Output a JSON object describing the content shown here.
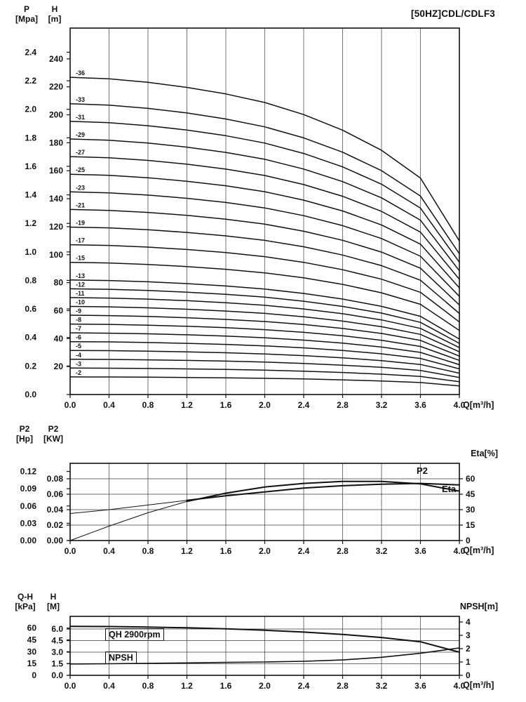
{
  "page": {
    "bg": "#ffffff",
    "fg": "#111111",
    "grid_color": "#3c3c3c"
  },
  "chart_data": [
    {
      "id": "head-capacity",
      "type": "line",
      "title": "[50HZ]CDL/CDLF3",
      "x_label": "Q[m³/h]",
      "xlim": [
        0,
        4
      ],
      "x_ticks": [
        "0.0",
        "0.4",
        "0.8",
        "1.2",
        "1.6",
        "2.0",
        "2.4",
        "2.8",
        "3.2",
        "3.6",
        "4.0"
      ],
      "left_axis_primary": {
        "label": "P",
        "unit": "[Mpa]",
        "m_per_unit": 101.97,
        "ticks": [
          "0.0",
          "0.2",
          "0.4",
          "0.6",
          "0.8",
          "1.0",
          "1.2",
          "1.4",
          "1.6",
          "1.8",
          "2.0",
          "2.2",
          "2.4"
        ]
      },
      "left_axis_secondary": {
        "label": "H",
        "unit": "[m]",
        "ticks": [
          "20",
          "40",
          "60",
          "80",
          "100",
          "120",
          "140",
          "160",
          "180",
          "200",
          "220",
          "240"
        ]
      },
      "master_ylim": [
        0,
        262
      ],
      "per_stage_curve": {
        "q": [
          0,
          0.4,
          0.8,
          1.2,
          1.6,
          2.0,
          2.4,
          2.8,
          3.2,
          3.6,
          4.0
        ],
        "head_m": [
          6.3,
          6.27,
          6.2,
          6.1,
          5.97,
          5.8,
          5.56,
          5.25,
          4.85,
          4.3,
          3.05
        ]
      },
      "stage_series": [
        {
          "label": "-36",
          "stages": 36
        },
        {
          "label": "-33",
          "stages": 33
        },
        {
          "label": "-31",
          "stages": 31
        },
        {
          "label": "-29",
          "stages": 29
        },
        {
          "label": "-27",
          "stages": 27
        },
        {
          "label": "-25",
          "stages": 25
        },
        {
          "label": "-23",
          "stages": 23
        },
        {
          "label": "-21",
          "stages": 21
        },
        {
          "label": "-19",
          "stages": 19
        },
        {
          "label": "-17",
          "stages": 17
        },
        {
          "label": "-15",
          "stages": 15
        },
        {
          "label": "-13",
          "stages": 13
        },
        {
          "label": "-12",
          "stages": 12
        },
        {
          "label": "-11",
          "stages": 11
        },
        {
          "label": "-10",
          "stages": 10
        },
        {
          "label": "-9",
          "stages": 9
        },
        {
          "label": "-8",
          "stages": 8
        },
        {
          "label": "-7",
          "stages": 7
        },
        {
          "label": "-6",
          "stages": 6
        },
        {
          "label": "-5",
          "stages": 5
        },
        {
          "label": "-4",
          "stages": 4
        },
        {
          "label": "-3",
          "stages": 3
        },
        {
          "label": "-2",
          "stages": 2
        }
      ]
    },
    {
      "id": "power-efficiency",
      "type": "line",
      "x_label": "Q[m³/h]",
      "xlim": [
        0,
        4
      ],
      "x_ticks": [
        "0.0",
        "0.4",
        "0.8",
        "1.2",
        "1.6",
        "2.0",
        "2.4",
        "2.8",
        "3.2",
        "3.6",
        "4.0"
      ],
      "left_axis_primary": {
        "label": "P2",
        "unit": "[Hp]",
        "kw_per_unit": 0.7457,
        "ticks": [
          "0.00",
          "0.03",
          "0.06",
          "0.09",
          "0.12"
        ]
      },
      "left_axis_secondary": {
        "label": "P2",
        "unit": "[KW]",
        "ticks": [
          "0.00",
          "0.02",
          "0.04",
          "0.06",
          "0.08"
        ]
      },
      "right_axis": {
        "label": "Eta[%]",
        "ticks": [
          "0",
          "15",
          "30",
          "45",
          "60"
        ]
      },
      "master_ylim": [
        0,
        0.1
      ],
      "right_ylim": [
        0,
        75
      ],
      "bold_from_q": 1.2,
      "series": [
        {
          "name": "P2",
          "axis": "left",
          "q": [
            0,
            0.4,
            0.8,
            1.2,
            1.6,
            2.0,
            2.4,
            2.8,
            3.2,
            3.6,
            4.0
          ],
          "values": [
            0.035,
            0.04,
            0.046,
            0.052,
            0.058,
            0.063,
            0.068,
            0.071,
            0.073,
            0.074,
            0.072
          ]
        },
        {
          "name": "Eta",
          "axis": "right",
          "q": [
            0,
            0.4,
            0.8,
            1.2,
            1.6,
            2.0,
            2.4,
            2.8,
            3.2,
            3.6,
            4.0
          ],
          "values": [
            0,
            14,
            27,
            38,
            46,
            52,
            55.5,
            57.5,
            57.5,
            55,
            48
          ]
        }
      ]
    },
    {
      "id": "qh-npsh",
      "type": "line",
      "x_label": "Q[m³/h]",
      "xlim": [
        0,
        4
      ],
      "x_ticks": [
        "0.0",
        "0.4",
        "0.8",
        "1.2",
        "1.6",
        "2.0",
        "2.4",
        "2.8",
        "3.2",
        "3.6",
        "4.0"
      ],
      "left_axis_primary": {
        "label": "Q-H",
        "unit": "[kPa]",
        "m_per_unit": 0.10197,
        "ticks": [
          "0",
          "15",
          "30",
          "45",
          "60"
        ]
      },
      "left_axis_secondary": {
        "label": "H",
        "unit": "[M]",
        "ticks": [
          "0.0",
          "1.5",
          "3.0",
          "4.5",
          "6.0"
        ]
      },
      "right_axis": {
        "label": "NPSH[m]",
        "ticks": [
          "0",
          "1",
          "2",
          "3",
          "4"
        ]
      },
      "master_ylim": [
        0,
        7.64
      ],
      "right_ylim": [
        0,
        4.42
      ],
      "series": [
        {
          "name": "QH 2900rpm",
          "axis": "left",
          "q": [
            0,
            0.4,
            0.8,
            1.2,
            1.6,
            2.0,
            2.4,
            2.8,
            3.2,
            3.6,
            4.0
          ],
          "values": [
            6.35,
            6.32,
            6.26,
            6.16,
            6.02,
            5.84,
            5.6,
            5.3,
            4.9,
            4.35,
            3.0
          ]
        },
        {
          "name": "NPSH",
          "axis": "right",
          "q": [
            0,
            0.4,
            0.8,
            1.2,
            1.6,
            2.0,
            2.4,
            2.8,
            3.2,
            3.6,
            4.0
          ],
          "values": [
            0.85,
            0.87,
            0.9,
            0.93,
            0.97,
            1.0,
            1.05,
            1.15,
            1.35,
            1.65,
            2.05
          ]
        }
      ]
    }
  ]
}
